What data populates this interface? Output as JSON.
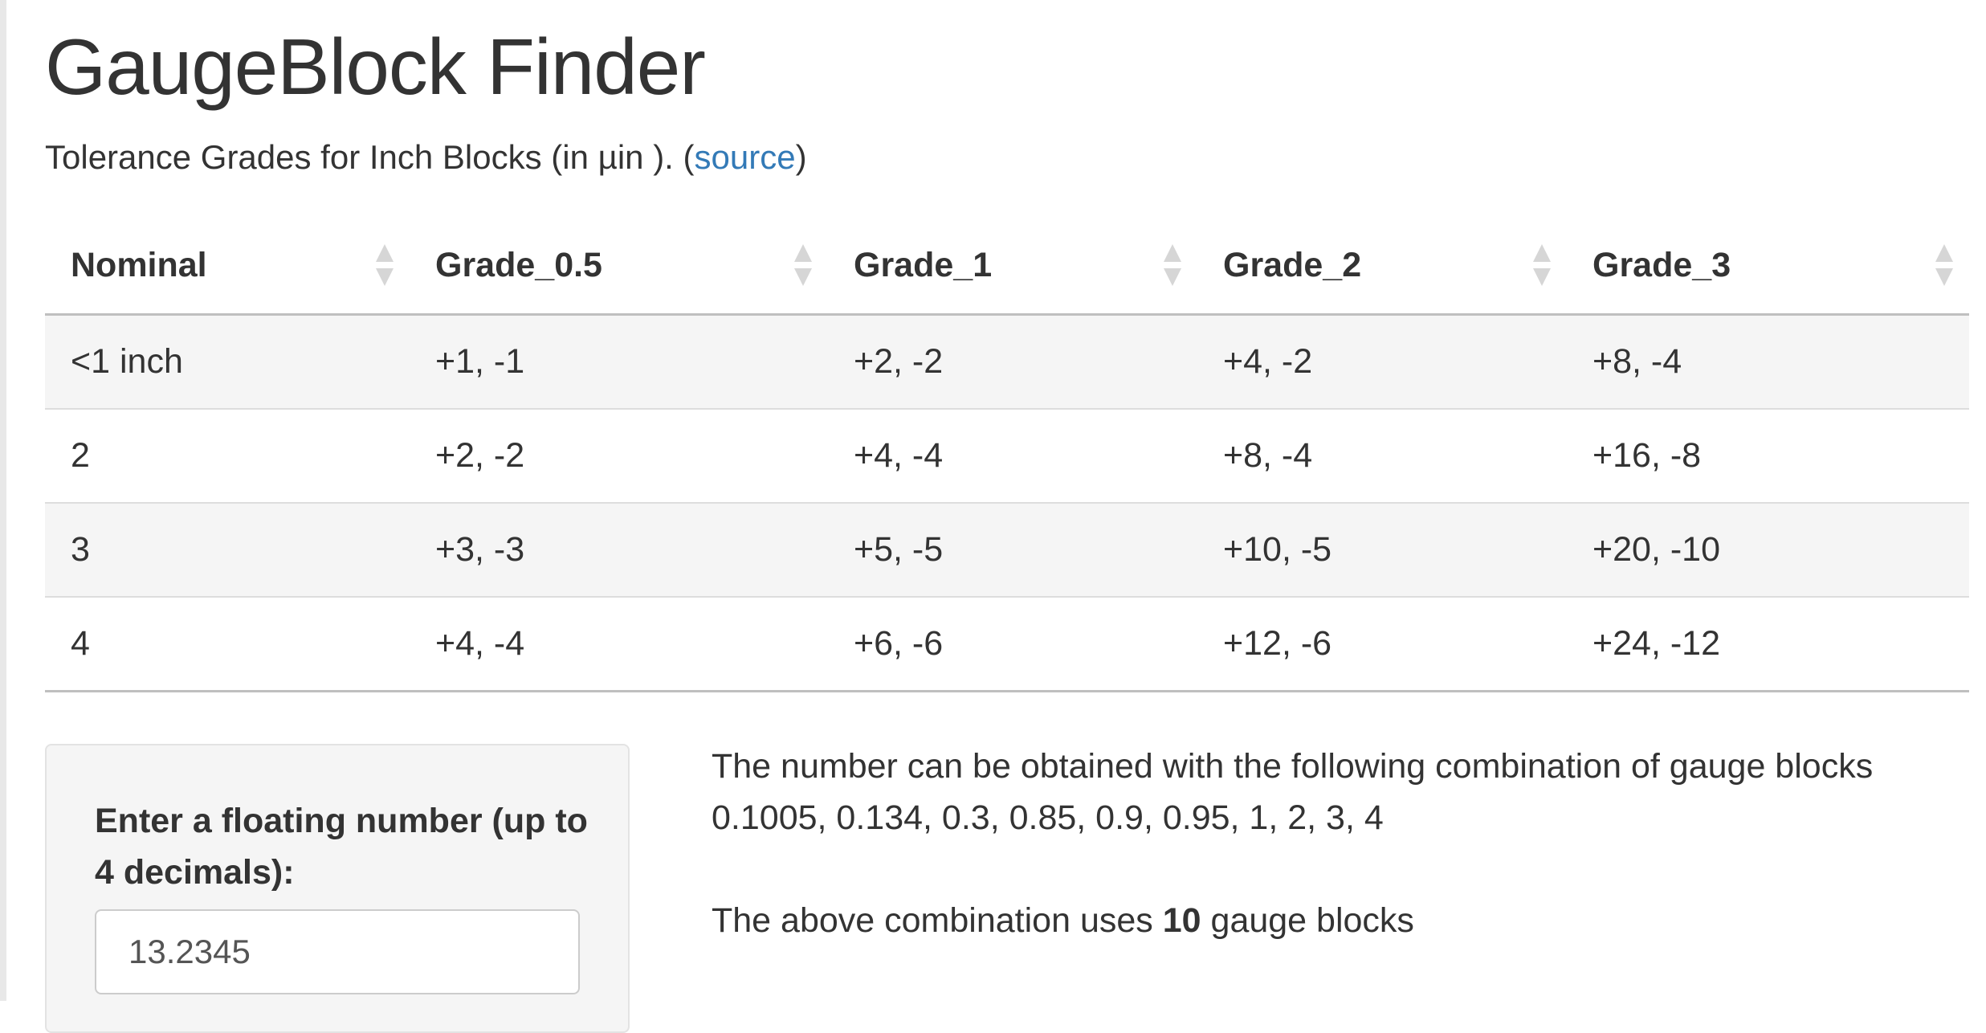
{
  "app": {
    "title": "GaugeBlock Finder"
  },
  "subtitle": {
    "text": "Tolerance Grades for Inch Blocks (in µin ). (",
    "link": "source",
    "after": ")"
  },
  "table": {
    "columns": [
      "Nominal",
      "Grade_0.5",
      "Grade_1",
      "Grade_2",
      "Grade_3"
    ],
    "rows": [
      [
        "<1 inch",
        "+1, -1",
        "+2, -2",
        "+4, -2",
        "+8, -4"
      ],
      [
        "2",
        "+2, -2",
        "+4, -4",
        "+8, -4",
        "+16, -8"
      ],
      [
        "3",
        "+3, -3",
        "+5, -5",
        "+10, -5",
        "+20, -10"
      ],
      [
        "4",
        "+4, -4",
        "+6, -6",
        "+12, -6",
        "+24, -12"
      ]
    ]
  },
  "input_panel": {
    "label": "Enter a floating number (up to 4 decimals):",
    "value": "13.2345"
  },
  "result": {
    "line1": "The number can be obtained with the following combination of gauge blocks",
    "line2": "0.1005, 0.134, 0.3, 0.85, 0.9, 0.95, 1, 2, 3, 4",
    "count_prefix": "The above combination uses ",
    "count": "10",
    "count_suffix": " gauge blocks"
  },
  "colors": {
    "link": "#337ab7",
    "text": "#333333",
    "stripe": "#f5f5f5"
  }
}
